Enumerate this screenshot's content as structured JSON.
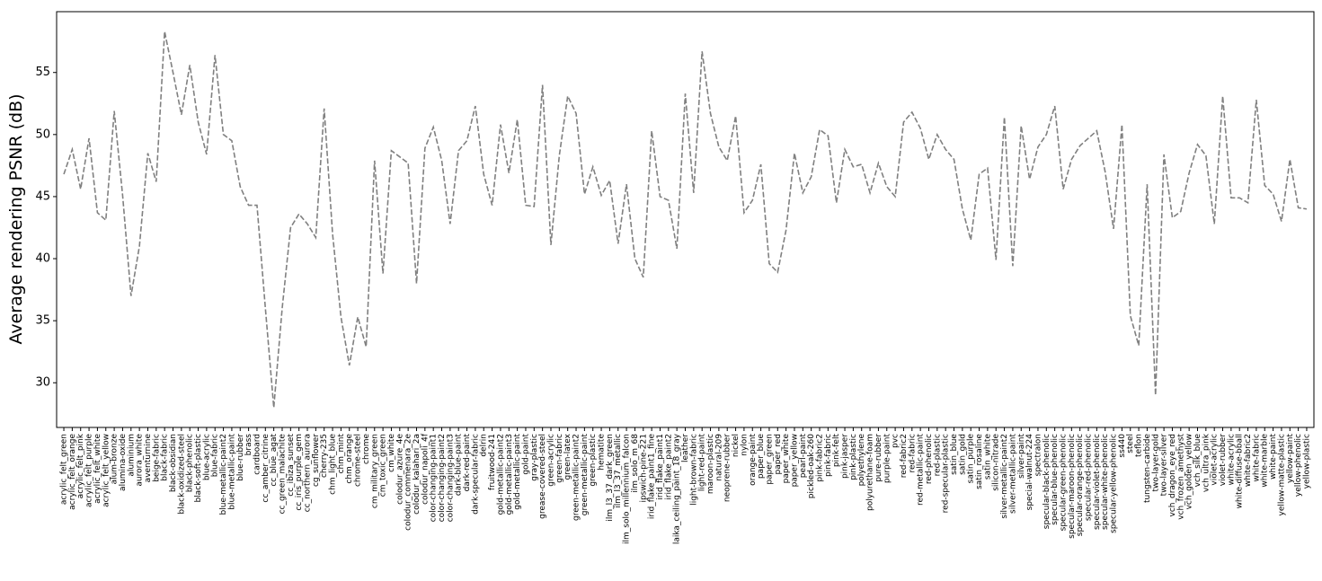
{
  "chart_data": {
    "type": "line",
    "y_label": "Average rendering PSNR (dB)",
    "categories": [
      "acrylic_felt_green",
      "acrylic_felt_orange",
      "acrylic_felt_pink",
      "acrylic_felt_purple",
      "acrylic_felt_white",
      "acrylic_felt_yellow",
      "alum-bronze",
      "alumina-oxide",
      "aluminium",
      "aurora_white",
      "aventurnine",
      "beige-fabric",
      "black-fabric",
      "black-obsidian",
      "black-oxidized-steel",
      "black-phenolic",
      "black-soft-plastic",
      "blue-acrylic",
      "blue-fabric",
      "blue-metallic-paint2",
      "blue-metallic-paint",
      "blue-rubber",
      "brass",
      "cardboard",
      "cc_amber_citrine",
      "cc_blue_agat",
      "cc_green_malachite",
      "cc_ibiza_sunset",
      "cc_iris_purple_gem",
      "cc_northern_aurora",
      "cg_sunflower",
      "cherry-235",
      "chm_light_blue",
      "chm_mint",
      "chm_orange",
      "chrome-steel",
      "chrome",
      "cm_military_green",
      "cm_toxic_green",
      "cm_white",
      "colodur_azure_4e",
      "colodur_commenara_2e",
      "colodur_kalahari_2a",
      "colodur_napoli_4f",
      "color-changing-paint1",
      "color-changing-paint2",
      "color-changing-paint3",
      "dark-blue-paint",
      "dark-red-paint",
      "dark-specular-fabric",
      "delrin",
      "fruitwood-241",
      "gold-metallic-paint2",
      "gold-metallic-paint3",
      "gold-metallic-paint",
      "gold-paint",
      "gray-plastic",
      "grease-covered-steel",
      "green-acrylic",
      "green-fabric",
      "green-latex",
      "green-metallic-paint2",
      "green-metallic-paint",
      "green-plastic",
      "hematite",
      "ilm_l3_37_dark_green",
      "ilm_l3_37_metallic",
      "ilm_solo_millennium_falcon",
      "ilm_solo_m_68",
      "ipswich-pine-221",
      "irid_flake_paint1_fine",
      "irid_flake_paint1",
      "irid_flake_paint2",
      "laika_ceiling_paint_18_gray",
      "leather",
      "light-brown-fabric",
      "light-red-paint",
      "maroon-plastic",
      "natural-209",
      "neoprene-rubber",
      "nickel",
      "nylon",
      "orange-paint",
      "paper_blue",
      "paper_green",
      "paper_red",
      "paper_white",
      "paper_yellow",
      "pearl-paint",
      "pickled-oak-260",
      "pink-fabric2",
      "pink-fabric",
      "pink-felt",
      "pink-jasper",
      "pink-plastic",
      "polyethylene",
      "polyurethane-foam",
      "pure-rubber",
      "purple-paint",
      "pvc",
      "red-fabric2",
      "red-fabric",
      "red-metallic-paint",
      "red-phenolic",
      "red-plastic",
      "red-specular-plastic",
      "satin_blue",
      "satin_gold",
      "satin_purple",
      "satin_rosaline",
      "satin_white",
      "silicon-nitrade",
      "silver-metallic-paint2",
      "silver-metallic-paint",
      "silver-paint",
      "special-walnut-224",
      "spectralon",
      "specular-black-phenolic",
      "specular-blue-phenolic",
      "specular-green-phenolic",
      "specular-maroon-phenolic",
      "specular-orange-phenolic",
      "specular-red-phenolic",
      "specular-violet-phenolic",
      "specular-white-phenolic",
      "specular-yellow-phenolic",
      "ss440",
      "steel",
      "teflon",
      "tungsten-carbide",
      "two-layer-gold",
      "two-layer-silver",
      "vch_dragon_eye_red",
      "vch_frozen_amethyst",
      "vch_golden_yellow",
      "vch_silk_blue",
      "vch_ultra_pink",
      "violet-acrylic",
      "violet-rubber",
      "white-acrylic",
      "white-diffuse-bball",
      "white-fabric2",
      "white-fabric",
      "white-marble",
      "white-paint",
      "yellow-matte-plastic",
      "yellow-paint",
      "yellow-phenolic",
      "yellow-plastic"
    ],
    "values": [
      46.8,
      48.8,
      45.6,
      49.7,
      43.7,
      43.1,
      51.9,
      45.1,
      37.0,
      41.0,
      48.5,
      46.2,
      58.3,
      55.0,
      51.6,
      55.6,
      51.0,
      48.4,
      56.4,
      50.0,
      49.5,
      45.8,
      44.3,
      44.3,
      36.0,
      28.0,
      36.0,
      42.5,
      43.6,
      42.8,
      41.7,
      52.1,
      42.0,
      35.3,
      31.4,
      35.3,
      32.9,
      47.9,
      38.8,
      48.7,
      48.2,
      47.7,
      38.0,
      48.9,
      50.6,
      47.9,
      42.8,
      48.7,
      49.5,
      52.3,
      46.8,
      44.3,
      50.8,
      46.9,
      51.2,
      44.3,
      44.2,
      54.0,
      41.1,
      48.3,
      53.1,
      51.7,
      45.2,
      47.4,
      45.1,
      46.3,
      41.2,
      46.0,
      40.0,
      38.5,
      50.3,
      45.0,
      44.7,
      40.8,
      53.3,
      45.3,
      56.7,
      51.7,
      49.0,
      47.9,
      51.5,
      43.7,
      44.7,
      47.6,
      39.6,
      38.9,
      42.3,
      48.5,
      45.3,
      46.6,
      50.4,
      49.9,
      44.5,
      48.8,
      47.4,
      47.6,
      45.3,
      47.7,
      45.8,
      45.0,
      51.0,
      51.8,
      50.5,
      48.0,
      50.0,
      48.8,
      48.0,
      44.0,
      41.5,
      46.8,
      47.3,
      39.9,
      51.4,
      39.4,
      50.7,
      46.4,
      49.0,
      50.0,
      52.3,
      45.6,
      48.0,
      49.1,
      49.7,
      50.3,
      47.0,
      42.4,
      50.8,
      35.4,
      33.0,
      46.0,
      29.0,
      48.4,
      43.3,
      43.8,
      46.9,
      49.2,
      48.3,
      42.8,
      53.1,
      44.9,
      44.9,
      44.5,
      52.8,
      45.9,
      45.2,
      43.0,
      48.0,
      44.1,
      44.0
    ],
    "color": "#808080",
    "line_style": "dashed",
    "ylim": [
      26.4,
      59.9
    ],
    "yticks": [
      30,
      35,
      40,
      45,
      50,
      55
    ],
    "grid": false
  }
}
